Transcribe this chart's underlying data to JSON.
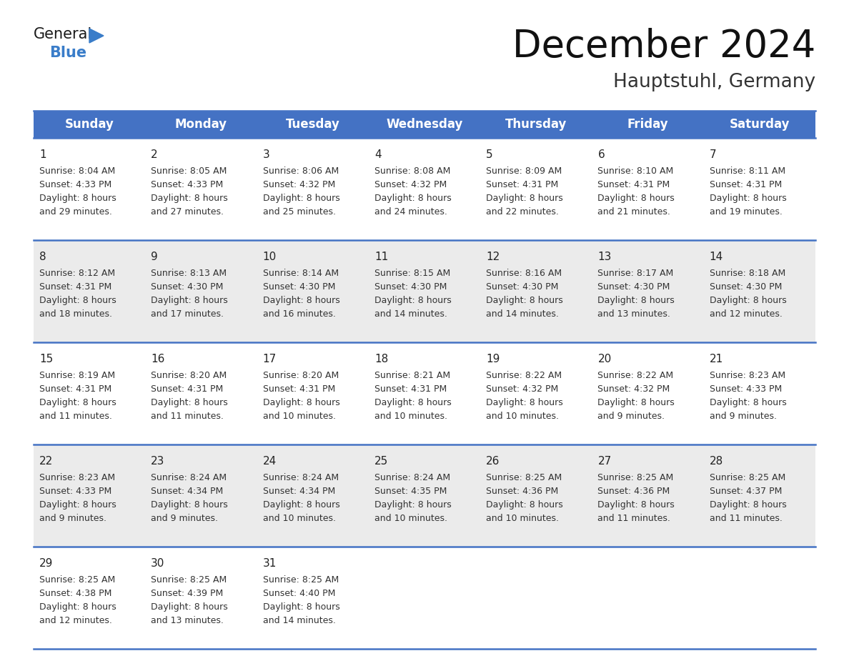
{
  "title": "December 2024",
  "subtitle": "Hauptstuhl, Germany",
  "header_bg_color": "#4472C4",
  "header_text_color": "#FFFFFF",
  "days_of_week": [
    "Sunday",
    "Monday",
    "Tuesday",
    "Wednesday",
    "Thursday",
    "Friday",
    "Saturday"
  ],
  "calendar": [
    [
      {
        "day": 1,
        "sunrise": "8:04 AM",
        "sunset": "4:33 PM",
        "daylight_h": "8 hours",
        "daylight_m": "29 minutes."
      },
      {
        "day": 2,
        "sunrise": "8:05 AM",
        "sunset": "4:33 PM",
        "daylight_h": "8 hours",
        "daylight_m": "27 minutes."
      },
      {
        "day": 3,
        "sunrise": "8:06 AM",
        "sunset": "4:32 PM",
        "daylight_h": "8 hours",
        "daylight_m": "25 minutes."
      },
      {
        "day": 4,
        "sunrise": "8:08 AM",
        "sunset": "4:32 PM",
        "daylight_h": "8 hours",
        "daylight_m": "24 minutes."
      },
      {
        "day": 5,
        "sunrise": "8:09 AM",
        "sunset": "4:31 PM",
        "daylight_h": "8 hours",
        "daylight_m": "22 minutes."
      },
      {
        "day": 6,
        "sunrise": "8:10 AM",
        "sunset": "4:31 PM",
        "daylight_h": "8 hours",
        "daylight_m": "21 minutes."
      },
      {
        "day": 7,
        "sunrise": "8:11 AM",
        "sunset": "4:31 PM",
        "daylight_h": "8 hours",
        "daylight_m": "19 minutes."
      }
    ],
    [
      {
        "day": 8,
        "sunrise": "8:12 AM",
        "sunset": "4:31 PM",
        "daylight_h": "8 hours",
        "daylight_m": "18 minutes."
      },
      {
        "day": 9,
        "sunrise": "8:13 AM",
        "sunset": "4:30 PM",
        "daylight_h": "8 hours",
        "daylight_m": "17 minutes."
      },
      {
        "day": 10,
        "sunrise": "8:14 AM",
        "sunset": "4:30 PM",
        "daylight_h": "8 hours",
        "daylight_m": "16 minutes."
      },
      {
        "day": 11,
        "sunrise": "8:15 AM",
        "sunset": "4:30 PM",
        "daylight_h": "8 hours",
        "daylight_m": "14 minutes."
      },
      {
        "day": 12,
        "sunrise": "8:16 AM",
        "sunset": "4:30 PM",
        "daylight_h": "8 hours",
        "daylight_m": "14 minutes."
      },
      {
        "day": 13,
        "sunrise": "8:17 AM",
        "sunset": "4:30 PM",
        "daylight_h": "8 hours",
        "daylight_m": "13 minutes."
      },
      {
        "day": 14,
        "sunrise": "8:18 AM",
        "sunset": "4:30 PM",
        "daylight_h": "8 hours",
        "daylight_m": "12 minutes."
      }
    ],
    [
      {
        "day": 15,
        "sunrise": "8:19 AM",
        "sunset": "4:31 PM",
        "daylight_h": "8 hours",
        "daylight_m": "11 minutes."
      },
      {
        "day": 16,
        "sunrise": "8:20 AM",
        "sunset": "4:31 PM",
        "daylight_h": "8 hours",
        "daylight_m": "11 minutes."
      },
      {
        "day": 17,
        "sunrise": "8:20 AM",
        "sunset": "4:31 PM",
        "daylight_h": "8 hours",
        "daylight_m": "10 minutes."
      },
      {
        "day": 18,
        "sunrise": "8:21 AM",
        "sunset": "4:31 PM",
        "daylight_h": "8 hours",
        "daylight_m": "10 minutes."
      },
      {
        "day": 19,
        "sunrise": "8:22 AM",
        "sunset": "4:32 PM",
        "daylight_h": "8 hours",
        "daylight_m": "10 minutes."
      },
      {
        "day": 20,
        "sunrise": "8:22 AM",
        "sunset": "4:32 PM",
        "daylight_h": "8 hours",
        "daylight_m": "9 minutes."
      },
      {
        "day": 21,
        "sunrise": "8:23 AM",
        "sunset": "4:33 PM",
        "daylight_h": "8 hours",
        "daylight_m": "9 minutes."
      }
    ],
    [
      {
        "day": 22,
        "sunrise": "8:23 AM",
        "sunset": "4:33 PM",
        "daylight_h": "8 hours",
        "daylight_m": "9 minutes."
      },
      {
        "day": 23,
        "sunrise": "8:24 AM",
        "sunset": "4:34 PM",
        "daylight_h": "8 hours",
        "daylight_m": "9 minutes."
      },
      {
        "day": 24,
        "sunrise": "8:24 AM",
        "sunset": "4:34 PM",
        "daylight_h": "8 hours",
        "daylight_m": "10 minutes."
      },
      {
        "day": 25,
        "sunrise": "8:24 AM",
        "sunset": "4:35 PM",
        "daylight_h": "8 hours",
        "daylight_m": "10 minutes."
      },
      {
        "day": 26,
        "sunrise": "8:25 AM",
        "sunset": "4:36 PM",
        "daylight_h": "8 hours",
        "daylight_m": "10 minutes."
      },
      {
        "day": 27,
        "sunrise": "8:25 AM",
        "sunset": "4:36 PM",
        "daylight_h": "8 hours",
        "daylight_m": "11 minutes."
      },
      {
        "day": 28,
        "sunrise": "8:25 AM",
        "sunset": "4:37 PM",
        "daylight_h": "8 hours",
        "daylight_m": "11 minutes."
      }
    ],
    [
      {
        "day": 29,
        "sunrise": "8:25 AM",
        "sunset": "4:38 PM",
        "daylight_h": "8 hours",
        "daylight_m": "12 minutes."
      },
      {
        "day": 30,
        "sunrise": "8:25 AM",
        "sunset": "4:39 PM",
        "daylight_h": "8 hours",
        "daylight_m": "13 minutes."
      },
      {
        "day": 31,
        "sunrise": "8:25 AM",
        "sunset": "4:40 PM",
        "daylight_h": "8 hours",
        "daylight_m": "14 minutes."
      },
      null,
      null,
      null,
      null
    ]
  ],
  "logo_color_general": "#1a1a1a",
  "logo_color_blue": "#3A7DC9",
  "logo_triangle_color": "#3A7DC9",
  "title_fontsize": 38,
  "subtitle_fontsize": 19,
  "header_fontsize": 12,
  "day_num_fontsize": 11,
  "cell_text_fontsize": 9
}
